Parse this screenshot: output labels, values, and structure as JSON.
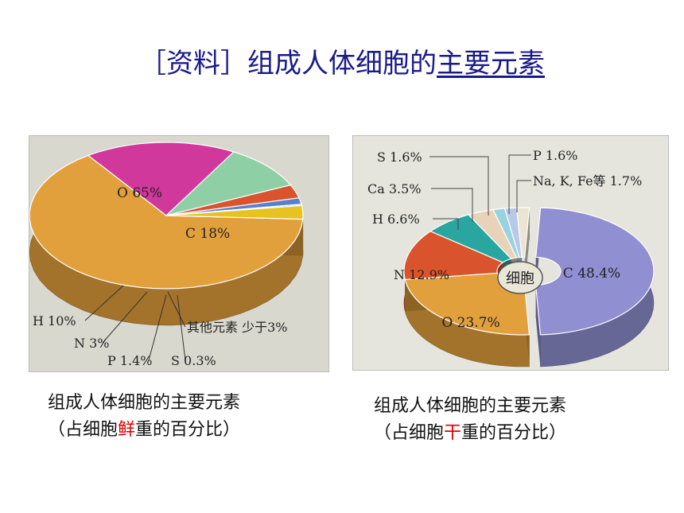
{
  "title": {
    "prefix": "［资料］组成人体细胞的",
    "underlined": "主要元素"
  },
  "chart_data": [
    {
      "type": "pie",
      "title": "",
      "slices": [
        {
          "label": "O 65%",
          "name": "O",
          "value": 65,
          "color": "#e2a03c"
        },
        {
          "label": "C 18%",
          "name": "C",
          "value": 18,
          "color": "#d1389c"
        },
        {
          "label": "H 10%",
          "name": "H",
          "value": 10,
          "color": "#8fcfa6"
        },
        {
          "label": "N 3%",
          "name": "N",
          "value": 3,
          "color": "#d9532c"
        },
        {
          "label": "P 1.4%",
          "name": "P",
          "value": 1.4,
          "color": "#5a7fcf"
        },
        {
          "label": "S 0.3%",
          "name": "S",
          "value": 0.3,
          "color": "#7dc7e8"
        },
        {
          "label": "其他元素 少于3%",
          "name": "其他元素",
          "value": 3,
          "color": "#e6c31e"
        }
      ]
    },
    {
      "type": "pie",
      "title": "",
      "center_label": "细胞",
      "slices": [
        {
          "label": "C 48.4%",
          "name": "C",
          "value": 48.4,
          "color": "#8f8fd1"
        },
        {
          "label": "O 23.7%",
          "name": "O",
          "value": 23.7,
          "color": "#e2a03c"
        },
        {
          "label": "N 12.9%",
          "name": "N",
          "value": 12.9,
          "color": "#d9532c"
        },
        {
          "label": "H 6.6%",
          "name": "H",
          "value": 6.6,
          "color": "#2aa6a0"
        },
        {
          "label": "Ca 3.5%",
          "name": "Ca",
          "value": 3.5,
          "color": "#e8d2b8"
        },
        {
          "label": "S 1.6%",
          "name": "S",
          "value": 1.6,
          "color": "#9ad3e0"
        },
        {
          "label": "P 1.6%",
          "name": "P",
          "value": 1.6,
          "color": "#b7c9e6"
        },
        {
          "label": "Na, K, Fe等 1.7%",
          "name": "Na, K, Fe等",
          "value": 1.7,
          "color": "#ece4d2"
        }
      ]
    }
  ],
  "captions": {
    "left": {
      "line1": "组成人体细胞的主要元素",
      "line2_pre": "（占细胞",
      "line2_hl": "鲜",
      "line2_post": "重的百分比）"
    },
    "right": {
      "line1": "组成人体细胞的主要元素",
      "line2_pre": "（占细胞",
      "line2_hl": "干",
      "line2_post": "重的百分比）"
    }
  }
}
